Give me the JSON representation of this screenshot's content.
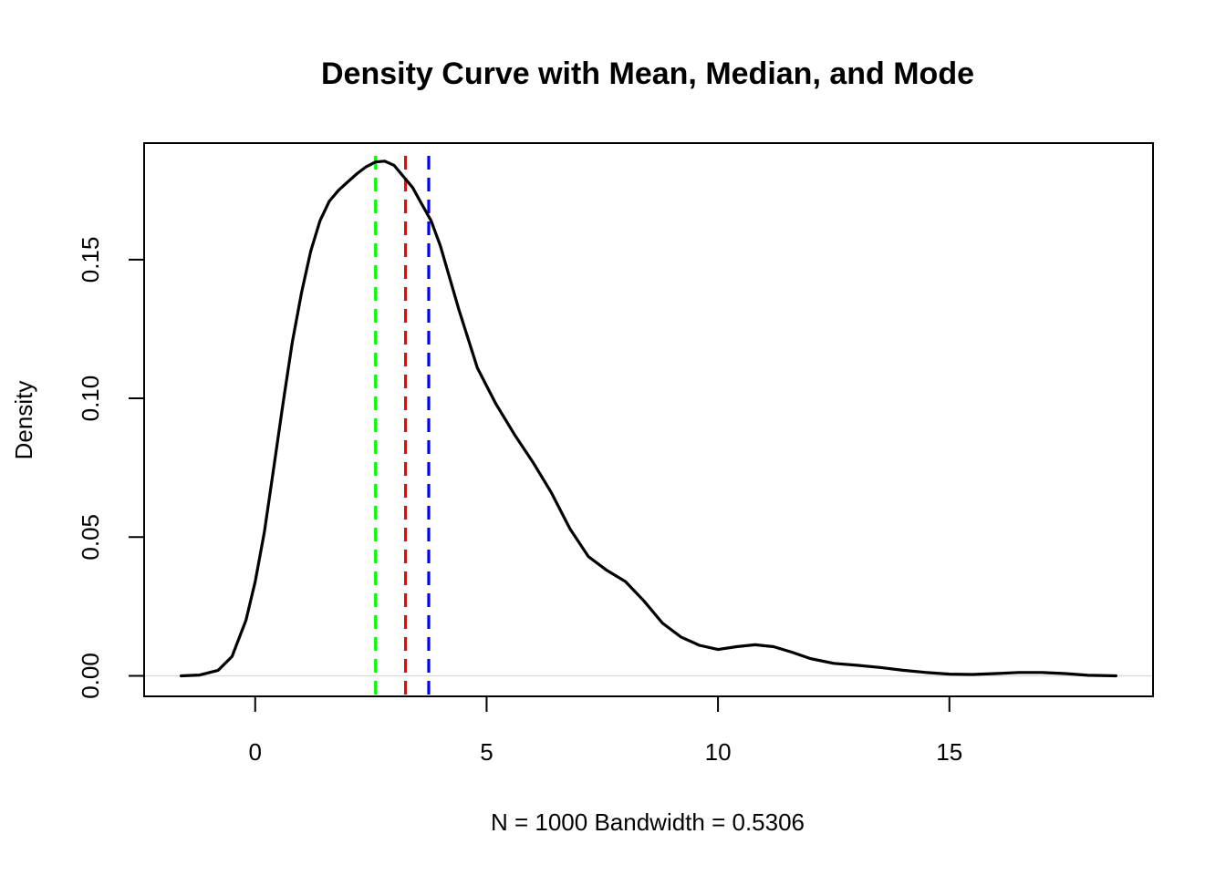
{
  "chart_data": {
    "type": "line",
    "title": "Density Curve with Mean, Median, and Mode",
    "xlabel": "N = 1000   Bandwidth = 0.5306",
    "ylabel": "Density",
    "xlim": [
      -2.4,
      19.4
    ],
    "ylim": [
      -0.0074,
      0.192
    ],
    "x_ticks": [
      0,
      5,
      10,
      15
    ],
    "y_ticks": [
      0.0,
      0.05,
      0.1,
      0.15
    ],
    "x_tick_labels": [
      "0",
      "5",
      "10",
      "15"
    ],
    "y_tick_labels": [
      "0.00",
      "0.05",
      "0.10",
      "0.15"
    ],
    "grid": false,
    "baseline": 0,
    "series": [
      {
        "color": "#000000",
        "x": [
          -1.6,
          -1.2,
          -0.8,
          -0.5,
          -0.2,
          0.0,
          0.2,
          0.4,
          0.6,
          0.8,
          1.0,
          1.2,
          1.4,
          1.6,
          1.8,
          2.0,
          2.2,
          2.4,
          2.6,
          2.8,
          3.0,
          3.2,
          3.4,
          3.6,
          3.8,
          4.0,
          4.4,
          4.8,
          5.2,
          5.6,
          6.0,
          6.4,
          6.8,
          7.2,
          7.6,
          8.0,
          8.4,
          8.8,
          9.2,
          9.6,
          10.0,
          10.4,
          10.8,
          11.2,
          11.6,
          12.0,
          12.5,
          13.0,
          13.5,
          14.0,
          14.5,
          15.0,
          15.5,
          16.0,
          16.5,
          17.0,
          17.5,
          18.0,
          18.6
        ],
        "y": [
          0.0,
          0.0003,
          0.002,
          0.007,
          0.02,
          0.034,
          0.052,
          0.075,
          0.098,
          0.12,
          0.138,
          0.153,
          0.164,
          0.171,
          0.175,
          0.178,
          0.181,
          0.1835,
          0.1852,
          0.1855,
          0.184,
          0.18,
          0.176,
          0.17,
          0.164,
          0.155,
          0.132,
          0.111,
          0.098,
          0.087,
          0.077,
          0.066,
          0.053,
          0.043,
          0.038,
          0.034,
          0.027,
          0.019,
          0.014,
          0.011,
          0.0095,
          0.0105,
          0.0112,
          0.0105,
          0.0085,
          0.0062,
          0.0045,
          0.0038,
          0.003,
          0.002,
          0.0012,
          0.0006,
          0.0005,
          0.0008,
          0.0012,
          0.0012,
          0.0008,
          0.0002,
          0.0
        ]
      }
    ],
    "vlines": [
      {
        "x": 3.75,
        "color": "#0000ff",
        "style": "dashed"
      },
      {
        "x": 3.25,
        "color": "#ff0000",
        "style": "dashed"
      },
      {
        "x": 2.6,
        "color": "#00ff00",
        "style": "dashed"
      }
    ]
  }
}
